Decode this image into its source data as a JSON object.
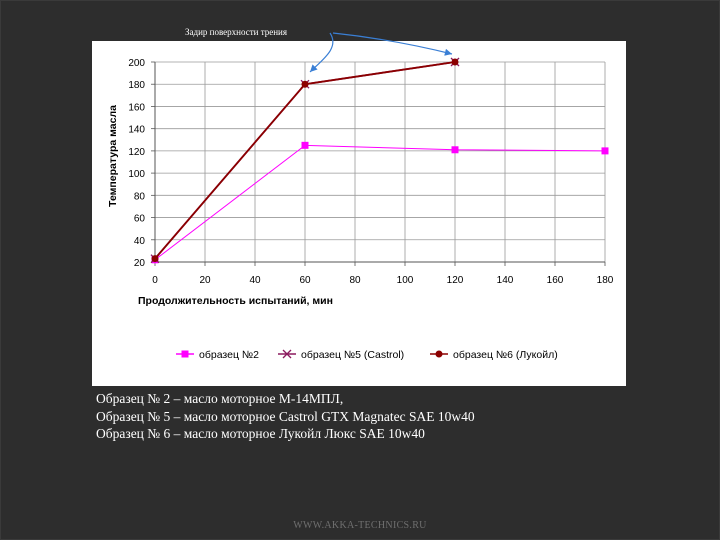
{
  "annotation": {
    "text": "Задир поверхности трения"
  },
  "chart_data": {
    "type": "line",
    "title": "",
    "xlabel": "Продолжительность  испытаний,  мин",
    "ylabel": "Температура  масла",
    "x_ticks": [
      "0",
      "20",
      "40",
      "60",
      "80",
      "100",
      "120",
      "140",
      "160",
      "180"
    ],
    "x_tick_values": [
      0,
      20,
      40,
      60,
      80,
      100,
      120,
      140,
      160,
      180
    ],
    "y_ticks": [
      "20",
      "40",
      "60",
      "80",
      "100",
      "120",
      "140",
      "160",
      "180",
      "200"
    ],
    "y_tick_values": [
      20,
      40,
      60,
      80,
      100,
      120,
      140,
      160,
      180,
      200
    ],
    "xlim": [
      0,
      180
    ],
    "ylim": [
      20,
      200
    ],
    "grid": true,
    "legend_position": "bottom",
    "series": [
      {
        "name": "образец №2",
        "color": "#ff00ff",
        "marker": "square",
        "points": [
          [
            0,
            22
          ],
          [
            60,
            125
          ],
          [
            120,
            121
          ],
          [
            180,
            120
          ]
        ]
      },
      {
        "name": "образец №5 (Castrol)",
        "color": "#8b1a5e",
        "marker": "x",
        "points": [
          [
            0,
            23
          ],
          [
            60,
            180
          ],
          [
            120,
            200
          ]
        ]
      },
      {
        "name": "образец №6 (Лукойл)",
        "color": "#8b0000",
        "marker": "circle",
        "points": [
          [
            0,
            23
          ],
          [
            60,
            180
          ],
          [
            120,
            200
          ]
        ]
      }
    ]
  },
  "captions": [
    "Образец № 2 – масло моторное М-14МПЛ,",
    "Образец № 5 – масло моторное Castrol GTX Magnatec SAE 10w40",
    "Образец № 6 – масло моторное Лукойл Люкс SAE 10w40"
  ],
  "footer": {
    "text": "WWW.AKKA-TECHNICS.RU"
  }
}
